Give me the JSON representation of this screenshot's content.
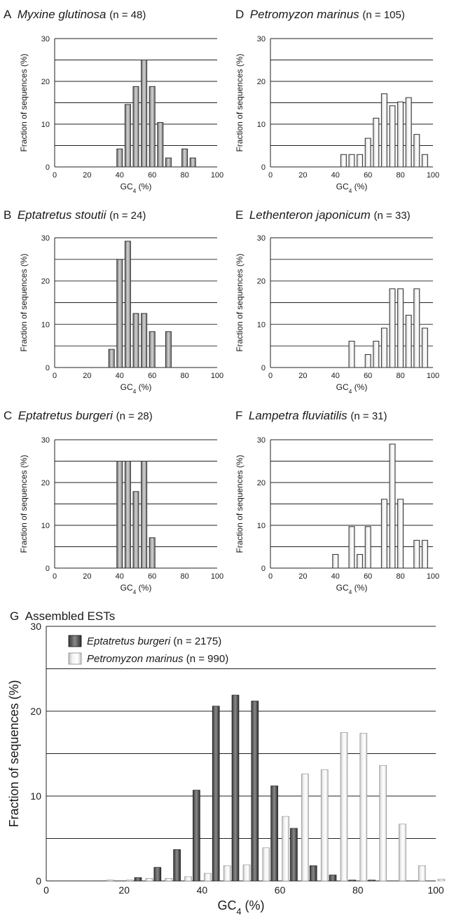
{
  "panels": [
    {
      "letter": "A",
      "species": "Myxine glutinosa",
      "n": "(n = 48)",
      "chart_data": {
        "type": "bar",
        "x": [
          40,
          45,
          50,
          55,
          60,
          65,
          70,
          80,
          85
        ],
        "values": [
          4.2,
          14.6,
          18.8,
          25.0,
          18.8,
          10.4,
          2.1,
          4.2,
          2.1
        ],
        "xlim": [
          0,
          100
        ],
        "ylim": [
          0,
          30
        ],
        "xticks": [
          "0",
          "20",
          "40",
          "60",
          "80",
          "100"
        ],
        "yticks": [
          "0",
          "10",
          "20",
          "30"
        ],
        "xlabel": "GC",
        "xlabel_sub": "4",
        "xlabel_unit": " (%)",
        "ylabel": "Fraction of sequences (%)"
      }
    },
    {
      "letter": "D",
      "species": "Petromyzon marinus",
      "n": "(n = 105)",
      "chart_data": {
        "type": "bar",
        "x": [
          45,
          50,
          55,
          60,
          65,
          70,
          75,
          80,
          85,
          90,
          95
        ],
        "values": [
          2.9,
          2.9,
          2.9,
          6.7,
          11.4,
          17.1,
          14.3,
          15.2,
          16.2,
          7.6,
          2.9
        ],
        "xlim": [
          0,
          100
        ],
        "ylim": [
          0,
          30
        ],
        "xticks": [
          "0",
          "20",
          "40",
          "60",
          "80",
          "100"
        ],
        "yticks": [
          "0",
          "10",
          "20",
          "30"
        ],
        "xlabel": "GC",
        "xlabel_sub": "4",
        "xlabel_unit": " (%)",
        "ylabel": "Fraction of sequences (%)"
      }
    },
    {
      "letter": "B",
      "species": "Eptatretus stoutii",
      "n": "(n = 24)",
      "chart_data": {
        "type": "bar",
        "x": [
          35,
          40,
          45,
          50,
          55,
          60,
          70
        ],
        "values": [
          4.2,
          25.0,
          29.2,
          12.5,
          12.5,
          8.3,
          8.3
        ],
        "xlim": [
          0,
          100
        ],
        "ylim": [
          0,
          30
        ],
        "xticks": [
          "0",
          "20",
          "40",
          "60",
          "80",
          "100"
        ],
        "yticks": [
          "0",
          "10",
          "20",
          "30"
        ],
        "xlabel": "GC",
        "xlabel_sub": "4",
        "xlabel_unit": " (%)",
        "ylabel": "Fraction of sequences (%)"
      }
    },
    {
      "letter": "E",
      "species": "Lethenteron japonicum",
      "n": "(n = 33)",
      "chart_data": {
        "type": "bar",
        "x": [
          50,
          60,
          65,
          70,
          75,
          80,
          85,
          90,
          95
        ],
        "values": [
          6.1,
          3.0,
          6.1,
          9.1,
          18.2,
          18.2,
          12.1,
          18.2,
          9.1
        ],
        "xlim": [
          0,
          100
        ],
        "ylim": [
          0,
          30
        ],
        "xticks": [
          "0",
          "20",
          "40",
          "60",
          "80",
          "100"
        ],
        "yticks": [
          "0",
          "10",
          "20",
          "30"
        ],
        "xlabel": "GC",
        "xlabel_sub": "4",
        "xlabel_unit": " (%)",
        "ylabel": "Fraction of sequences (%)"
      }
    },
    {
      "letter": "C",
      "species": "Eptatretus burgeri",
      "n": "(n = 28)",
      "chart_data": {
        "type": "bar",
        "x": [
          40,
          45,
          50,
          55,
          60
        ],
        "values": [
          25.0,
          25.0,
          17.9,
          25.0,
          7.1
        ],
        "xlim": [
          0,
          100
        ],
        "ylim": [
          0,
          30
        ],
        "xticks": [
          "0",
          "20",
          "40",
          "60",
          "80",
          "100"
        ],
        "yticks": [
          "0",
          "10",
          "20",
          "30"
        ],
        "xlabel": "GC",
        "xlabel_sub": "4",
        "xlabel_unit": " (%)",
        "ylabel": "Fraction of sequences (%)"
      }
    },
    {
      "letter": "F",
      "species": "Lampetra fluviatilis",
      "n": "(n = 31)",
      "chart_data": {
        "type": "bar",
        "x": [
          40,
          50,
          55,
          60,
          70,
          75,
          80,
          90,
          95
        ],
        "values": [
          3.2,
          9.7,
          3.2,
          9.7,
          16.1,
          29.0,
          16.1,
          6.5,
          6.5
        ],
        "xlim": [
          0,
          100
        ],
        "ylim": [
          0,
          30
        ],
        "xticks": [
          "0",
          "20",
          "40",
          "60",
          "80",
          "100"
        ],
        "yticks": [
          "0",
          "10",
          "20",
          "30"
        ],
        "xlabel": "GC",
        "xlabel_sub": "4",
        "xlabel_unit": " (%)",
        "ylabel": "Fraction of sequences (%)"
      }
    }
  ],
  "panel_g": {
    "letter": "G",
    "title": "Assembled ESTs",
    "chart_data": {
      "type": "bar",
      "x": [
        0,
        5,
        10,
        15,
        20,
        25,
        30,
        35,
        40,
        45,
        50,
        55,
        60,
        65,
        70,
        75,
        80,
        85,
        90,
        95,
        100
      ],
      "xlim": [
        0,
        100
      ],
      "ylim": [
        0,
        30
      ],
      "xticks": [
        "0",
        "20",
        "40",
        "60",
        "80",
        "100"
      ],
      "yticks": [
        "0",
        "10",
        "20",
        "30"
      ],
      "xlabel": "GC",
      "xlabel_sub": "4",
      "xlabel_unit": " (%)",
      "ylabel": "Fraction of sequences (%)",
      "legend_position": "top-left",
      "series": [
        {
          "name": "Eptatretus burgeri",
          "n": "(n = 2175)",
          "color": "#2a2a2a",
          "values": [
            0,
            0,
            0,
            0,
            0,
            0.4,
            1.6,
            3.7,
            10.7,
            20.6,
            21.9,
            21.2,
            11.2,
            6.2,
            1.8,
            0.7,
            0.1,
            0.1,
            0,
            0,
            0
          ]
        },
        {
          "name": "Petromyzon marinus",
          "n": "(n = 990)",
          "color": "#e6e6e6",
          "values": [
            0,
            0,
            0,
            0.1,
            0.1,
            0.3,
            0.3,
            0.5,
            0.9,
            1.8,
            1.9,
            3.9,
            7.6,
            12.6,
            13.1,
            17.5,
            17.4,
            13.6,
            6.7,
            1.8,
            0.2
          ]
        }
      ]
    }
  }
}
